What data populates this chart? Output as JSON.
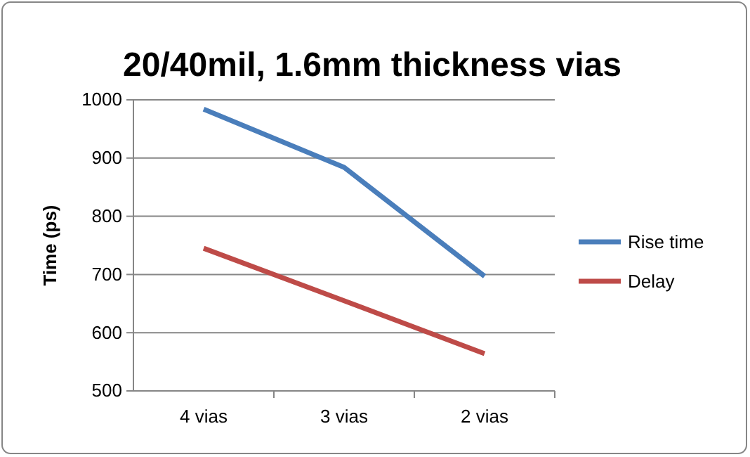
{
  "chart_data": {
    "type": "line",
    "title": "20/40mil, 1.6mm thickness vias",
    "ylabel": "Time (ps)",
    "categories": [
      "4 vias",
      "3 vias",
      "2 vias"
    ],
    "series": [
      {
        "name": "Rise time",
        "color": "#4a7ebb",
        "values": [
          984,
          884,
          697
        ]
      },
      {
        "name": "Delay",
        "color": "#be4b48",
        "values": [
          745,
          655,
          564
        ]
      }
    ],
    "ylim": [
      500,
      1000
    ],
    "yticks": [
      500,
      600,
      700,
      800,
      900,
      1000
    ],
    "grid": "y",
    "legend": "right",
    "marker": "none",
    "line_style": "solid"
  }
}
